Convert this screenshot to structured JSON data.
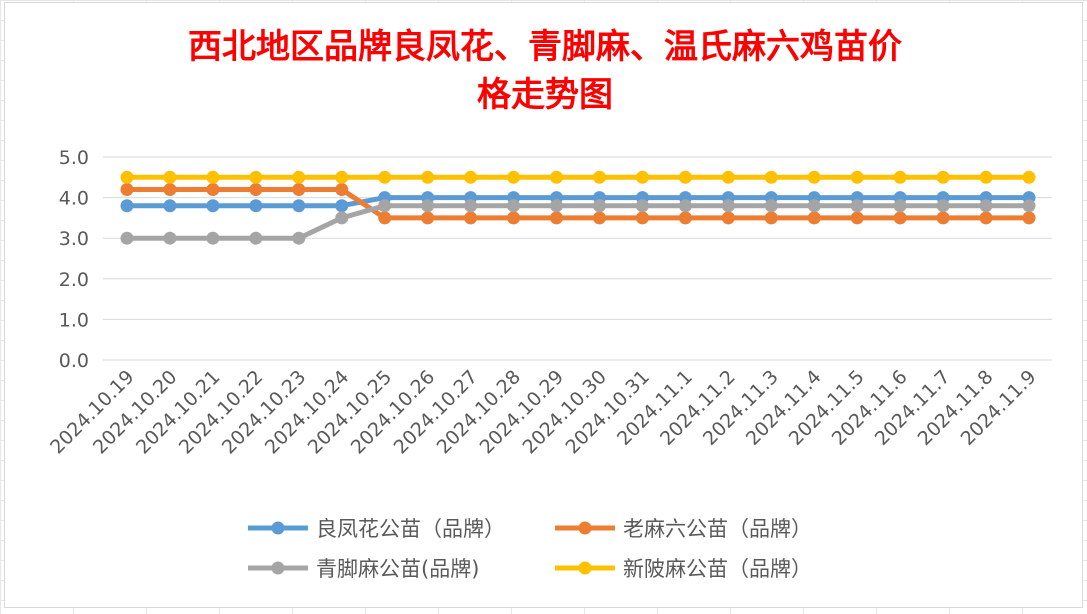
{
  "chart_data": {
    "type": "line",
    "title_lines": [
      "西北地区品牌良凤花、青脚麻、温氏麻六鸡苗价",
      "格走势图"
    ],
    "categories": [
      "2024.10.19",
      "2024.10.20",
      "2024.10.21",
      "2024.10.22",
      "2024.10.23",
      "2024.10.24",
      "2024.10.25",
      "2024.10.26",
      "2024.10.27",
      "2024.10.28",
      "2024.10.29",
      "2024.10.30",
      "2024.10.31",
      "2024.11.1",
      "2024.11.2",
      "2024.11.3",
      "2024.11.4",
      "2024.11.5",
      "2024.11.6",
      "2024.11.7",
      "2024.11.8",
      "2024.11.9"
    ],
    "yticks": [
      "0.0",
      "1.0",
      "2.0",
      "3.0",
      "4.0",
      "5.0"
    ],
    "ylim": [
      0,
      5
    ],
    "grid": true,
    "legend_position": "bottom",
    "series": [
      {
        "name": "良凤花公苗（品牌）",
        "color": "#5b9bd5",
        "values": [
          3.8,
          3.8,
          3.8,
          3.8,
          3.8,
          3.8,
          4.0,
          4.0,
          4.0,
          4.0,
          4.0,
          4.0,
          4.0,
          4.0,
          4.0,
          4.0,
          4.0,
          4.0,
          4.0,
          4.0,
          4.0,
          4.0
        ]
      },
      {
        "name": "老麻六公苗（品牌）",
        "color": "#ed7d31",
        "values": [
          4.2,
          4.2,
          4.2,
          4.2,
          4.2,
          4.2,
          3.5,
          3.5,
          3.5,
          3.5,
          3.5,
          3.5,
          3.5,
          3.5,
          3.5,
          3.5,
          3.5,
          3.5,
          3.5,
          3.5,
          3.5,
          3.5
        ]
      },
      {
        "name": "青脚麻公苗(品牌)",
        "color": "#a5a5a5",
        "values": [
          3.0,
          3.0,
          3.0,
          3.0,
          3.0,
          3.5,
          3.8,
          3.8,
          3.8,
          3.8,
          3.8,
          3.8,
          3.8,
          3.8,
          3.8,
          3.8,
          3.8,
          3.8,
          3.8,
          3.8,
          3.8,
          3.8
        ]
      },
      {
        "name": "新陂麻公苗（品牌）",
        "color": "#ffc000",
        "values": [
          4.5,
          4.5,
          4.5,
          4.5,
          4.5,
          4.5,
          4.5,
          4.5,
          4.5,
          4.5,
          4.5,
          4.5,
          4.5,
          4.5,
          4.5,
          4.5,
          4.5,
          4.5,
          4.5,
          4.5,
          4.5,
          4.5
        ]
      }
    ]
  }
}
